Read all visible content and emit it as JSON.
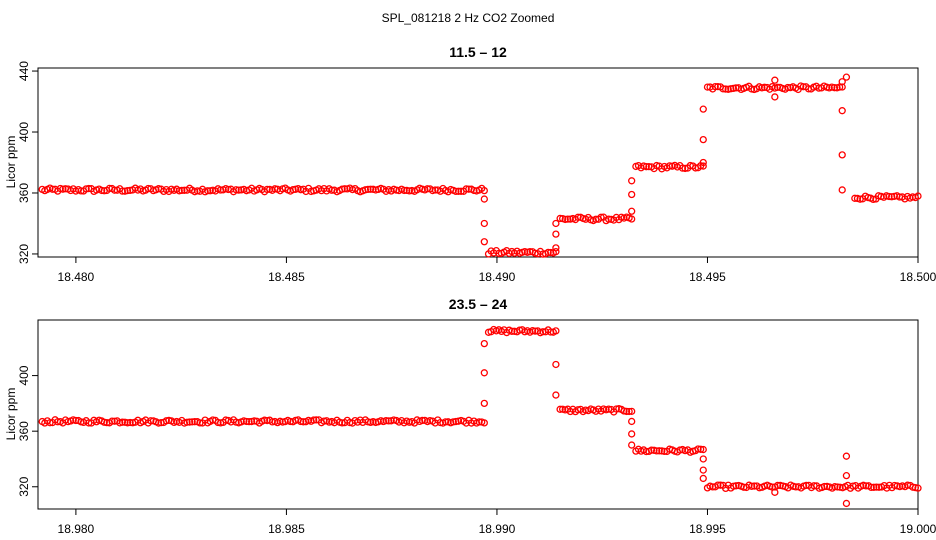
{
  "figure_title": "SPL_081218  2 Hz CO2 Zoomed",
  "point_color": "#ff0000",
  "chart_data": [
    {
      "type": "scatter",
      "title": "11.5 – 12",
      "xlabel": "",
      "ylabel": "Licor ppm",
      "xlim": [
        18.4791,
        18.5
      ],
      "ylim": [
        318,
        442
      ],
      "xticks": [
        "18.480",
        "18.485",
        "18.490",
        "18.495",
        "18.500"
      ],
      "xtick_values": [
        18.48,
        18.485,
        18.49,
        18.495,
        18.5
      ],
      "yticks": [
        "320",
        "360",
        "400",
        "440"
      ],
      "ytick_values": [
        320,
        360,
        400,
        440
      ],
      "grid": false,
      "segments": [
        {
          "x_start": 18.4792,
          "x_end": 18.4897,
          "y": 362
        },
        {
          "x_start": 18.4898,
          "x_end": 18.4914,
          "y": 321
        },
        {
          "x_start": 18.4915,
          "x_end": 18.4932,
          "y": 343
        },
        {
          "x_start": 18.4933,
          "x_end": 18.4949,
          "y": 377
        },
        {
          "x_start": 18.495,
          "x_end": 18.4982,
          "y": 429
        },
        {
          "x_start": 18.4985,
          "x_end": 18.5,
          "y": 357
        }
      ],
      "transitions": [
        {
          "x": 18.4897,
          "y": [
            356,
            340,
            328
          ]
        },
        {
          "x": 18.4914,
          "y": [
            324,
            333,
            340
          ]
        },
        {
          "x": 18.4932,
          "y": [
            348,
            359,
            368
          ]
        },
        {
          "x": 18.4949,
          "y": [
            380,
            395,
            415
          ]
        },
        {
          "x": 18.4982,
          "y": [
            433,
            414,
            385,
            362
          ]
        }
      ],
      "outliers": [
        {
          "x": 18.4966,
          "y": 434
        },
        {
          "x": 18.4966,
          "y": 423
        },
        {
          "x": 18.4983,
          "y": 436
        }
      ]
    },
    {
      "type": "scatter",
      "title": "23.5 – 24",
      "xlabel": "",
      "ylabel": "Licor ppm",
      "xlim": [
        18.9791,
        19.0
      ],
      "ylim": [
        304,
        440
      ],
      "xticks": [
        "18.980",
        "18.985",
        "18.990",
        "18.995",
        "19.000"
      ],
      "xtick_values": [
        18.98,
        18.985,
        18.99,
        18.995,
        19.0
      ],
      "yticks": [
        "320",
        "360",
        "400"
      ],
      "ytick_values": [
        320,
        360,
        400
      ],
      "grid": false,
      "segments": [
        {
          "x_start": 18.9792,
          "x_end": 18.9897,
          "y": 367
        },
        {
          "x_start": 18.9898,
          "x_end": 18.9914,
          "y": 432
        },
        {
          "x_start": 18.9915,
          "x_end": 18.9932,
          "y": 375
        },
        {
          "x_start": 18.9933,
          "x_end": 18.9949,
          "y": 346
        },
        {
          "x_start": 18.995,
          "x_end": 19.0,
          "y": 320
        }
      ],
      "transitions": [
        {
          "x": 18.9897,
          "y": [
            380,
            402,
            423
          ]
        },
        {
          "x": 18.9914,
          "y": [
            408,
            386
          ]
        },
        {
          "x": 18.9932,
          "y": [
            367,
            358,
            350
          ]
        },
        {
          "x": 18.9949,
          "y": [
            340,
            332,
            326
          ]
        }
      ],
      "outliers": [
        {
          "x": 18.9966,
          "y": 316
        },
        {
          "x": 18.9983,
          "y": 342
        },
        {
          "x": 18.9983,
          "y": 328
        },
        {
          "x": 18.9983,
          "y": 308
        }
      ]
    }
  ]
}
